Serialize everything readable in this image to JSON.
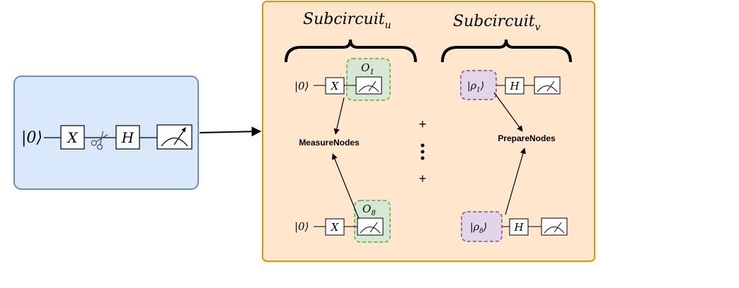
{
  "colors": {
    "original_panel_fill": "#dae8fc",
    "original_panel_stroke": "#6c8ebf",
    "subcircuit_panel_fill": "#ffe6cc",
    "subcircuit_panel_stroke": "#d79b00",
    "observable_fill": "#d5e8d4",
    "observable_stroke": "#82b366",
    "state_fill": "#e1d5e7",
    "state_stroke": "#9673a6"
  },
  "original_circuit": {
    "ket": "|0⟩",
    "gate_x": "X",
    "gate_h": "H",
    "icons": [
      "scissors-icon",
      "meter-icon"
    ]
  },
  "subcircuit_u": {
    "title_main": "Subcircuit",
    "title_sub": "u",
    "top_ket": "|0⟩",
    "top_gate": "X",
    "top_obs_main": "O",
    "top_obs_sub": "1",
    "bottom_ket": "|0⟩",
    "bottom_gate": "X",
    "bottom_obs_main": "O",
    "bottom_obs_sub": "8",
    "node_label": "MeasureNodes"
  },
  "subcircuit_v": {
    "title_main": "Subcircuit",
    "title_sub": "v",
    "top_state_main": "|ρ",
    "top_state_sub": "1",
    "top_state_close": "⟩",
    "top_gate": "H",
    "bottom_state_main": "|ρ",
    "bottom_state_sub": "8",
    "bottom_state_close": "⟩",
    "bottom_gate": "H",
    "node_label": "PrepareNodes"
  },
  "separators": {
    "plus_top": "+",
    "plus_bottom": "+"
  }
}
